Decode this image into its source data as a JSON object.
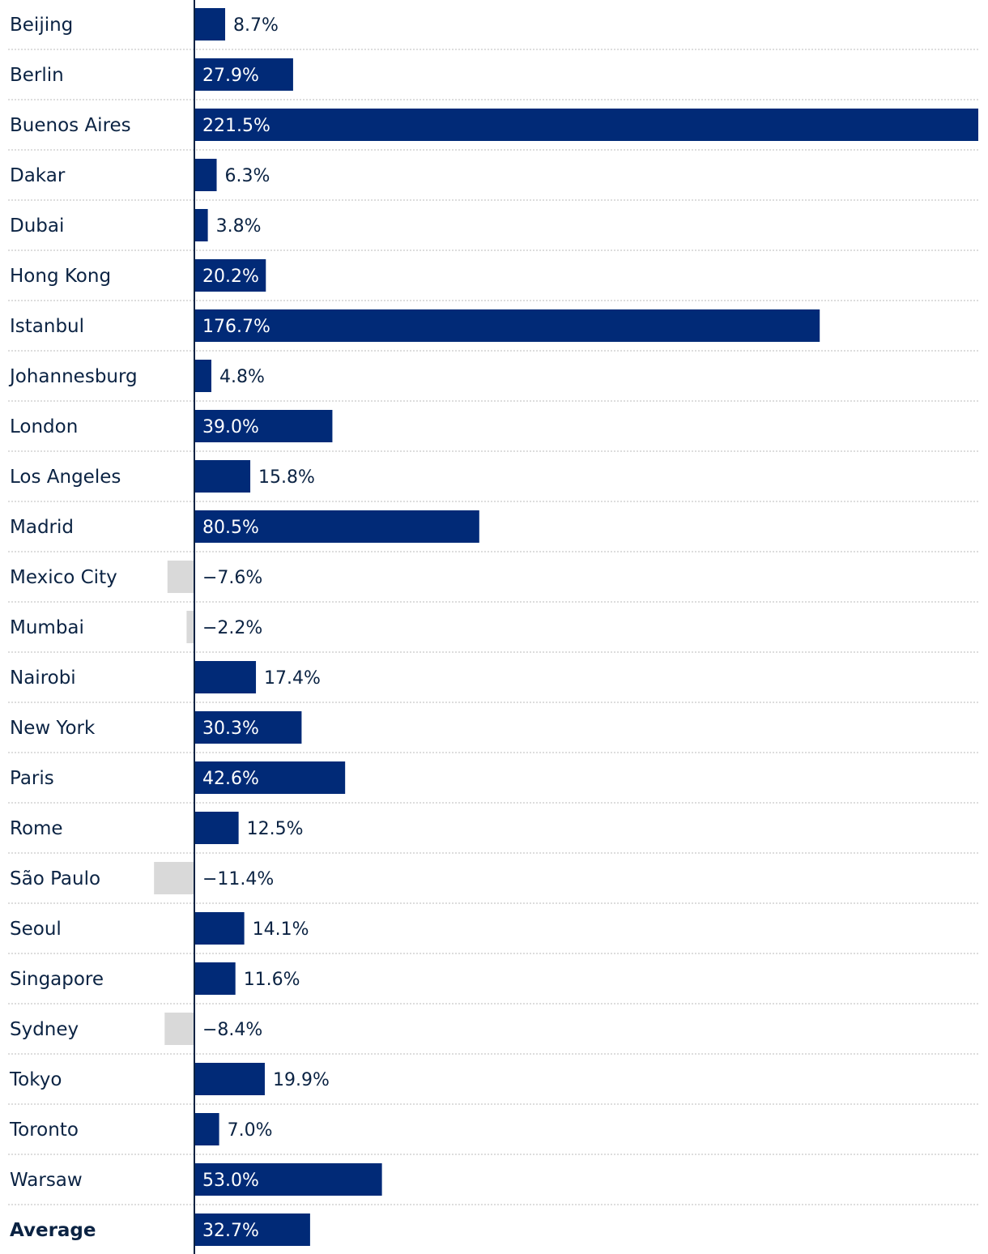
{
  "chart_data": {
    "type": "bar",
    "orientation": "horizontal",
    "categories": [
      "Beijing",
      "Berlin",
      "Buenos Aires",
      "Dakar",
      "Dubai",
      "Hong Kong",
      "Istanbul",
      "Johannesburg",
      "London",
      "Los Angeles",
      "Madrid",
      "Mexico City",
      "Mumbai",
      "Nairobi",
      "New York",
      "Paris",
      "Rome",
      "São Paulo",
      "Seoul",
      "Singapore",
      "Sydney",
      "Tokyo",
      "Toronto",
      "Warsaw",
      "Average"
    ],
    "values": [
      8.7,
      27.9,
      221.5,
      6.3,
      3.8,
      20.2,
      176.7,
      4.8,
      39.0,
      15.8,
      80.5,
      -7.6,
      -2.2,
      17.4,
      30.3,
      42.6,
      12.5,
      -11.4,
      14.1,
      11.6,
      -8.4,
      19.9,
      7.0,
      53.0,
      32.7
    ],
    "value_labels": [
      "8.7%",
      "27.9%",
      "221.5%",
      "6.3%",
      "3.8%",
      "20.2%",
      "176.7%",
      "4.8%",
      "39.0%",
      "15.8%",
      "80.5%",
      "−7.6%",
      "−2.2%",
      "17.4%",
      "30.3%",
      "42.6%",
      "12.5%",
      "−11.4%",
      "14.1%",
      "11.6%",
      "−8.4%",
      "19.9%",
      "7.0%",
      "53.0%",
      "32.7%"
    ],
    "unit": "%",
    "xlim": [
      -53.5,
      221.5
    ],
    "grid": "dotted row separators",
    "highlight_category": "Average",
    "title": "",
    "xlabel": "",
    "ylabel": ""
  },
  "colors": {
    "positive_bar": "#012a77",
    "negative_bar": "#d9d9d9",
    "label_on_bar": "#ffffff",
    "label_off_bar": "#0b2343",
    "category_text": "#0b2343",
    "axis": "#0b2343",
    "separator": "#bbbbbb"
  }
}
